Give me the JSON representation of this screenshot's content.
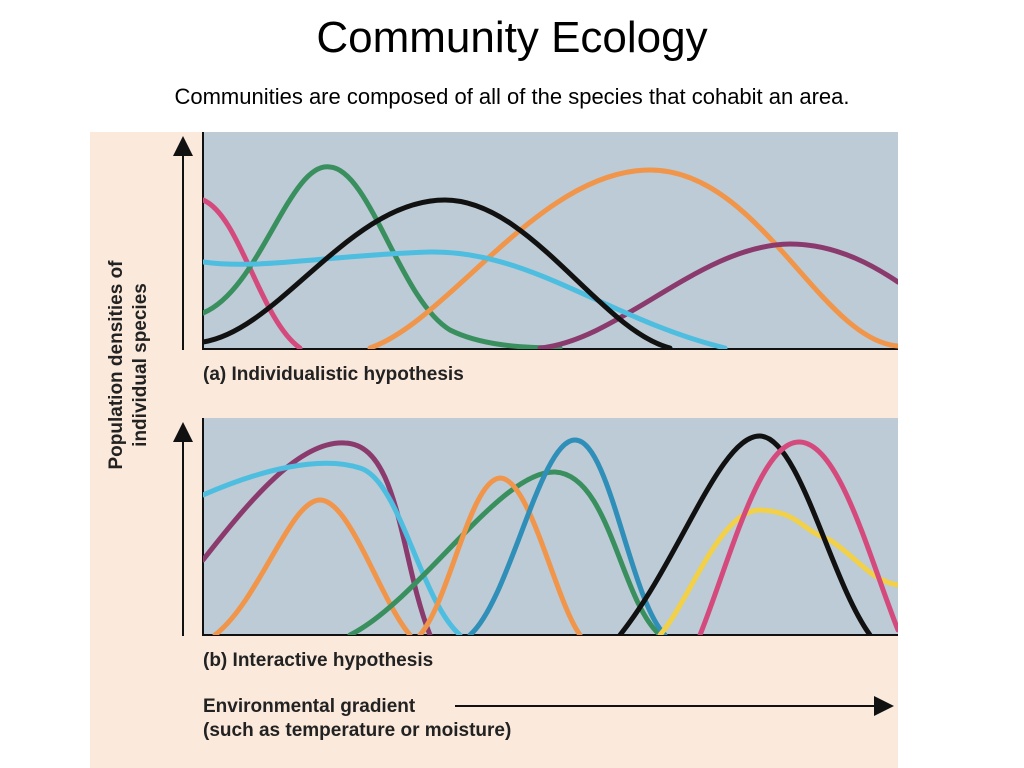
{
  "header": {
    "title": "Community Ecology",
    "subtitle": "Communities are composed of all of the species that cohabit an area."
  },
  "figure": {
    "y_axis_label": [
      "Population densities of",
      "individual species"
    ],
    "panels": [
      {
        "label": "(a) Individualistic hypothesis"
      },
      {
        "label": "(b) Interactive hypothesis"
      }
    ],
    "x_axis_label": [
      "Environmental gradient",
      "(such as temperature or moisture)"
    ]
  }
}
